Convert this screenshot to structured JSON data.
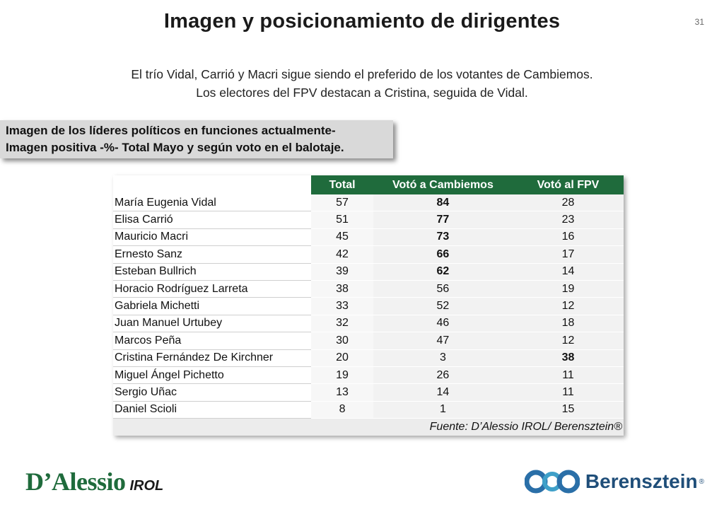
{
  "header": {
    "title": "Imagen y posicionamiento de dirigentes",
    "page_number": "31"
  },
  "subtitle": {
    "line1": "El trío Vidal, Carrió y Macri sigue siendo el preferido de los votantes de Cambiemos.",
    "line2": "Los electores del FPV destacan a Cristina, seguida de Vidal."
  },
  "callout": {
    "line1": "Imagen de los líderes políticos en funciones actualmente-",
    "line2": "Imagen positiva -%- Total Mayo y según voto en el balotaje."
  },
  "table": {
    "columns": [
      "Total",
      "Votó a Cambiemos",
      "Votó al FPV"
    ],
    "rows": [
      {
        "name": "María Eugenia Vidal",
        "total": "57",
        "cambiemos": "84",
        "fpv": "28"
      },
      {
        "name": "Elisa Carrió",
        "total": "51",
        "cambiemos": "77",
        "fpv": "23"
      },
      {
        "name": "Mauricio Macri",
        "total": "45",
        "cambiemos": "73",
        "fpv": "16"
      },
      {
        "name": "Ernesto Sanz",
        "total": "42",
        "cambiemos": "66",
        "fpv": "17"
      },
      {
        "name": "Esteban Bullrich",
        "total": "39",
        "cambiemos": "62",
        "fpv": "14"
      },
      {
        "name": "Horacio Rodríguez Larreta",
        "total": "38",
        "cambiemos": "56",
        "fpv": "19"
      },
      {
        "name": "Gabriela Michetti",
        "total": "33",
        "cambiemos": "52",
        "fpv": "12"
      },
      {
        "name": "Juan Manuel Urtubey",
        "total": "32",
        "cambiemos": "46",
        "fpv": "18"
      },
      {
        "name": "Marcos Peña",
        "total": "30",
        "cambiemos": "47",
        "fpv": "12"
      },
      {
        "name": "Cristina Fernández De Kirchner",
        "total": "20",
        "cambiemos": "3",
        "fpv": "38"
      },
      {
        "name": "Miguel Ángel Pichetto",
        "total": "19",
        "cambiemos": "26",
        "fpv": "11"
      },
      {
        "name": "Sergio Uñac",
        "total": "13",
        "cambiemos": "14",
        "fpv": "11"
      },
      {
        "name": "Daniel Scioli",
        "total": "8",
        "cambiemos": "1",
        "fpv": "15"
      }
    ],
    "source": "Fuente: D’Alessio IROL/ Berensztein®"
  },
  "logos": {
    "left_main": "D’Alessio",
    "left_sub": "IROL",
    "right": "Berensztein",
    "right_mark": "®"
  },
  "colors": {
    "header_green": "#1f6b3c",
    "berensztein_blue": "#1f4e79"
  }
}
